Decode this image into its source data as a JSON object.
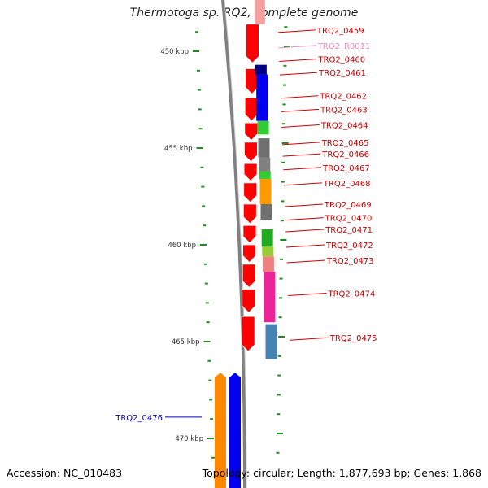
{
  "header": {
    "title": "Thermotoga sp. RQ2, complete genome"
  },
  "footer": {
    "accession": "Accession: NC_010483",
    "stats": "Topology: circular; Length: 1,877,693 bp; Genes: 1,868"
  },
  "colors": {
    "ruler_tick": "#1b8f1b",
    "ruler_label": "#333333",
    "gene_label": "#cc0000",
    "rna_label": "#f28cb8",
    "reverse_gene_label": "#0000cc",
    "backbone": "#808080"
  },
  "ruler": {
    "unit": "kbp",
    "labels": [
      {
        "kbp": 450,
        "text": "450 kbp"
      },
      {
        "kbp": 455,
        "text": "455 kbp"
      },
      {
        "kbp": 460,
        "text": "460 kbp"
      },
      {
        "kbp": 465,
        "text": "465 kbp"
      },
      {
        "kbp": 470,
        "text": "470 kbp"
      }
    ]
  },
  "features": {
    "cds_track": [
      {
        "from_kbp": 448.6,
        "to_kbp": 450.6,
        "color": "#ff0000"
      },
      {
        "from_kbp": 450.9,
        "to_kbp": 452.2,
        "color": "#ff0000"
      },
      {
        "from_kbp": 452.4,
        "to_kbp": 453.6,
        "color": "#ff0000"
      },
      {
        "from_kbp": 453.7,
        "to_kbp": 454.6,
        "color": "#ff0000"
      },
      {
        "from_kbp": 454.7,
        "to_kbp": 455.7,
        "color": "#ff0000"
      },
      {
        "from_kbp": 455.8,
        "to_kbp": 456.7,
        "color": "#ff0000"
      },
      {
        "from_kbp": 456.8,
        "to_kbp": 457.8,
        "color": "#ff0000"
      },
      {
        "from_kbp": 457.9,
        "to_kbp": 458.9,
        "color": "#ff0000"
      },
      {
        "from_kbp": 459.0,
        "to_kbp": 459.9,
        "color": "#ff0000"
      },
      {
        "from_kbp": 460.0,
        "to_kbp": 460.9,
        "color": "#ff0000"
      },
      {
        "from_kbp": 461.0,
        "to_kbp": 462.2,
        "color": "#ff0000"
      },
      {
        "from_kbp": 462.3,
        "to_kbp": 463.5,
        "color": "#ff0000"
      },
      {
        "from_kbp": 463.7,
        "to_kbp": 465.5,
        "color": "#ff0000"
      }
    ],
    "rna_feature": {
      "from_kbp": 448.3,
      "to_kbp": 448.6,
      "color": "#f4a0a0"
    },
    "cog_track": [
      {
        "from_kbp": 450.7,
        "to_kbp": 451.2,
        "color": "#000080"
      },
      {
        "from_kbp": 451.2,
        "to_kbp": 453.6,
        "color": "#0000ee"
      },
      {
        "from_kbp": 453.6,
        "to_kbp": 454.3,
        "color": "#33cc33"
      },
      {
        "from_kbp": 454.5,
        "to_kbp": 455.5,
        "color": "#707070"
      },
      {
        "from_kbp": 455.5,
        "to_kbp": 456.2,
        "color": "#808080"
      },
      {
        "from_kbp": 456.2,
        "to_kbp": 456.6,
        "color": "#33cc33"
      },
      {
        "from_kbp": 456.6,
        "to_kbp": 457.9,
        "color": "#ff9900"
      },
      {
        "from_kbp": 457.9,
        "to_kbp": 458.7,
        "color": "#707070"
      },
      {
        "from_kbp": 459.2,
        "to_kbp": 460.1,
        "color": "#22aa22"
      },
      {
        "from_kbp": 460.1,
        "to_kbp": 460.6,
        "color": "#99cc33"
      },
      {
        "from_kbp": 460.6,
        "to_kbp": 461.4,
        "color": "#f08080"
      },
      {
        "from_kbp": 461.4,
        "to_kbp": 464.0,
        "color": "#ee2299"
      },
      {
        "from_kbp": 464.1,
        "to_kbp": 465.9,
        "color": "#4682b4"
      }
    ],
    "reverse_tracks": [
      {
        "from_kbp": 466.6,
        "to_kbp": 472.0,
        "color": "#ff8800",
        "track": 1
      },
      {
        "from_kbp": 466.6,
        "to_kbp": 472.0,
        "color": "#0000ee",
        "track": 2
      }
    ]
  },
  "gene_labels": [
    {
      "text": "TRQ2_0459",
      "kbp": 448.9,
      "color": "#cc0000"
    },
    {
      "text": "TRQ2_R0011",
      "kbp": 449.7,
      "color": "#f28cb8"
    },
    {
      "text": "TRQ2_0460",
      "kbp": 450.4,
      "color": "#cc0000"
    },
    {
      "text": "TRQ2_0461",
      "kbp": 451.1,
      "color": "#cc0000"
    },
    {
      "text": "TRQ2_0462",
      "kbp": 452.3,
      "color": "#cc0000"
    },
    {
      "text": "TRQ2_0463",
      "kbp": 453.0,
      "color": "#cc0000"
    },
    {
      "text": "TRQ2_0464",
      "kbp": 453.8,
      "color": "#cc0000"
    },
    {
      "text": "TRQ2_0465",
      "kbp": 454.7,
      "color": "#cc0000"
    },
    {
      "text": "TRQ2_0466",
      "kbp": 455.3,
      "color": "#cc0000"
    },
    {
      "text": "TRQ2_0467",
      "kbp": 456.0,
      "color": "#cc0000"
    },
    {
      "text": "TRQ2_0468",
      "kbp": 456.8,
      "color": "#cc0000"
    },
    {
      "text": "TRQ2_0469",
      "kbp": 457.9,
      "color": "#cc0000"
    },
    {
      "text": "TRQ2_0470",
      "kbp": 458.6,
      "color": "#cc0000"
    },
    {
      "text": "TRQ2_0471",
      "kbp": 459.2,
      "color": "#cc0000"
    },
    {
      "text": "TRQ2_0472",
      "kbp": 460.0,
      "color": "#cc0000"
    },
    {
      "text": "TRQ2_0473",
      "kbp": 460.8,
      "color": "#cc0000"
    },
    {
      "text": "TRQ2_0474",
      "kbp": 462.5,
      "color": "#cc0000"
    },
    {
      "text": "TRQ2_0475",
      "kbp": 464.8,
      "color": "#cc0000"
    },
    {
      "text": "TRQ2_0476",
      "kbp": 468.9,
      "color": "#0000cc"
    }
  ]
}
